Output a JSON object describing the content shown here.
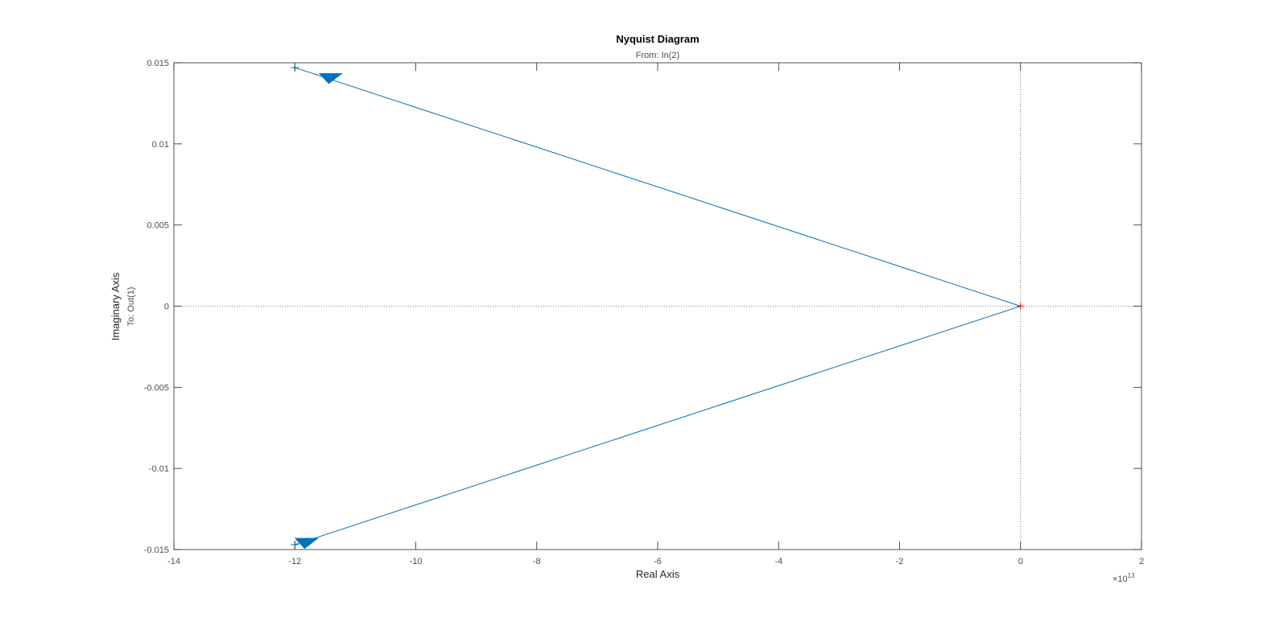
{
  "chart_data": {
    "type": "line",
    "title": "Nyquist Diagram",
    "subtitle": "From: In(2)",
    "xlabel": "Real Axis",
    "ylabel": "Imaginary Axis",
    "ylabel2": "To: Out(1)",
    "x_exponent_base": "×10",
    "x_exponent_power": "13",
    "xlim": [
      -14,
      2
    ],
    "ylim": [
      -0.015,
      0.015
    ],
    "xticks": [
      -14,
      -12,
      -10,
      -8,
      -6,
      -4,
      -2,
      0,
      2
    ],
    "xtick_labels": [
      "-14",
      "-12",
      "-10",
      "-8",
      "-6",
      "-4",
      "-2",
      "0",
      "2"
    ],
    "yticks": [
      0.015,
      0.01,
      0.005,
      0,
      -0.005,
      -0.01,
      -0.015
    ],
    "ytick_labels": [
      "0.015",
      "0.01",
      "0.005",
      "0",
      "-0.005",
      "-0.01",
      "-0.015"
    ],
    "grid": false,
    "series": [
      {
        "color": "#0072BD",
        "x": [
          -12.0,
          0.0,
          -12.0
        ],
        "y": [
          0.0147,
          0.0,
          -0.0147
        ]
      }
    ],
    "direction_arrows": [
      {
        "x": -11.4,
        "y": 0.01405,
        "dir": "left"
      },
      {
        "x": -11.8,
        "y": -0.0146,
        "dir": "left"
      }
    ],
    "critical_point": {
      "x": 0,
      "y": 0,
      "marker": "+",
      "color": "#ff0000"
    },
    "zero_lines": true
  }
}
